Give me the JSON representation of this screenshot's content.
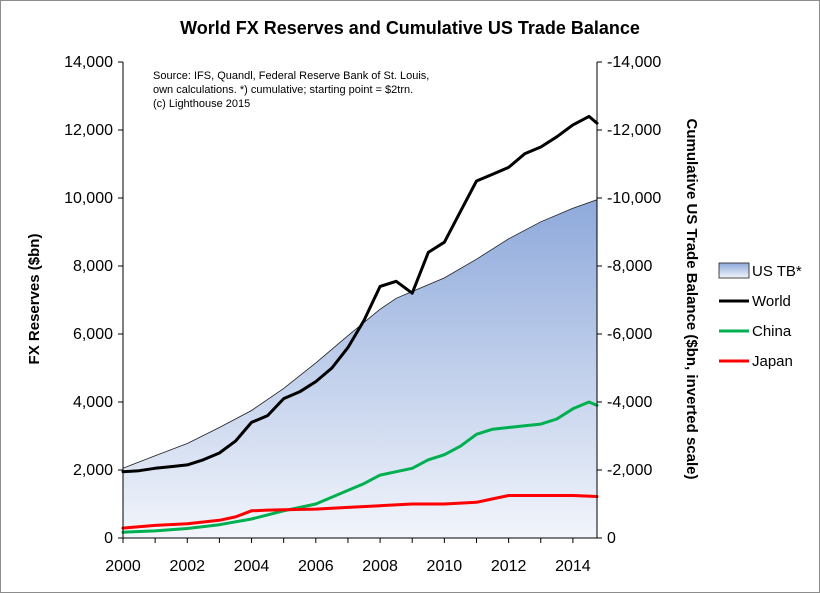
{
  "chart_data": {
    "type": "line",
    "title": "World FX Reserves and Cumulative US Trade  Balance",
    "ylabel": "FX Reserves ($bn)",
    "y2label": "Cumulative US Trade Balance ($bn, inverted scale)",
    "xlim": [
      2000,
      2014.75
    ],
    "ylim": [
      0,
      14000
    ],
    "y2lim": [
      0,
      -14000
    ],
    "y2_inverted": true,
    "x_ticks": [
      2000,
      2002,
      2004,
      2006,
      2008,
      2010,
      2012,
      2014
    ],
    "x_tick_labels": [
      "2000",
      "2002",
      "2004",
      "2006",
      "2008",
      "2010",
      "2012",
      "2014"
    ],
    "y_ticks": [
      0,
      2000,
      4000,
      6000,
      8000,
      10000,
      12000,
      14000
    ],
    "y_tick_labels": [
      "0",
      "2,000",
      "4,000",
      "6,000",
      "8,000",
      "10,000",
      "12,000",
      "14,000"
    ],
    "y2_tick_labels": [
      "0",
      "-2,000",
      "-4,000",
      "-6,000",
      "-8,000",
      "-10,000",
      "-12,000",
      "-14,000"
    ],
    "grid": false,
    "legend_position": "right",
    "annotation": [
      "Source: IFS, Quandl, Federal Reserve Bank of St. Louis,",
      "own calculations.  *) cumulative; starting point = $2trn.",
      "(c) Lighthouse 2015"
    ],
    "series": [
      {
        "name": "US TB*",
        "kind": "area",
        "color": "#8ea9db",
        "x": [
          2000,
          2001,
          2002,
          2003,
          2004,
          2005,
          2006,
          2007,
          2008,
          2008.5,
          2009,
          2010,
          2011,
          2012,
          2013,
          2014,
          2014.75
        ],
        "values": [
          2050,
          2420,
          2780,
          3250,
          3750,
          4400,
          5150,
          5950,
          6730,
          7050,
          7250,
          7650,
          8200,
          8800,
          9300,
          9700,
          9950
        ]
      },
      {
        "name": "World",
        "kind": "line",
        "color": "#000000",
        "x": [
          2000,
          2000.5,
          2001,
          2001.5,
          2002,
          2002.5,
          2003,
          2003.5,
          2004,
          2004.5,
          2005,
          2005.5,
          2006,
          2006.5,
          2007,
          2007.5,
          2008,
          2008.5,
          2009,
          2009.5,
          2010,
          2010.5,
          2011,
          2011.5,
          2012,
          2012.5,
          2013,
          2013.5,
          2014,
          2014.5,
          2014.75
        ],
        "values": [
          1950,
          1980,
          2050,
          2100,
          2150,
          2300,
          2500,
          2850,
          3400,
          3600,
          4100,
          4300,
          4600,
          5000,
          5600,
          6400,
          7400,
          7550,
          7200,
          8400,
          8700,
          9600,
          10500,
          10700,
          10900,
          11300,
          11500,
          11800,
          12150,
          12400,
          12200
        ]
      },
      {
        "name": "China",
        "kind": "line",
        "color": "#00b050",
        "x": [
          2000,
          2001,
          2002,
          2003,
          2004,
          2005,
          2006,
          2007,
          2007.5,
          2008,
          2008.5,
          2009,
          2009.5,
          2010,
          2010.5,
          2011,
          2011.5,
          2012,
          2012.5,
          2013,
          2013.5,
          2014,
          2014.5,
          2014.75
        ],
        "values": [
          170,
          210,
          280,
          390,
          560,
          800,
          1000,
          1400,
          1600,
          1850,
          1950,
          2050,
          2300,
          2450,
          2700,
          3050,
          3200,
          3250,
          3300,
          3350,
          3500,
          3800,
          4000,
          3900
        ]
      },
      {
        "name": "Japan",
        "kind": "line",
        "color": "#ff0000",
        "x": [
          2000,
          2001,
          2002,
          2003,
          2003.5,
          2004,
          2004.5,
          2005,
          2006,
          2007,
          2008,
          2009,
          2010,
          2011,
          2011.5,
          2012,
          2013,
          2014,
          2014.75
        ],
        "values": [
          290,
          370,
          420,
          520,
          620,
          800,
          820,
          830,
          850,
          900,
          950,
          1000,
          1000,
          1050,
          1150,
          1250,
          1250,
          1250,
          1220
        ]
      }
    ]
  }
}
